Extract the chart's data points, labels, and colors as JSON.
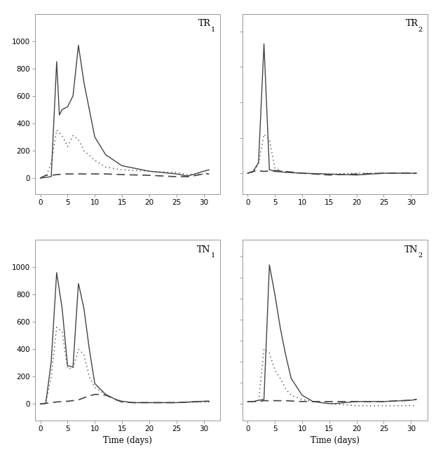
{
  "panels": [
    {
      "label": "TR",
      "label_sub": "1",
      "row": 0,
      "col": 0,
      "ylim": [
        -120,
        1200
      ],
      "yticks": [
        0,
        200,
        400,
        600,
        800,
        1000
      ],
      "solid": {
        "x": [
          0,
          1,
          2,
          3,
          3.5,
          4,
          5,
          6,
          7,
          8,
          10,
          12,
          15,
          20,
          25,
          27,
          28,
          30,
          31
        ],
        "y": [
          0,
          5,
          10,
          850,
          460,
          500,
          520,
          600,
          970,
          700,
          300,
          170,
          90,
          50,
          30,
          15,
          25,
          50,
          60
        ]
      },
      "dotted": {
        "x": [
          0,
          1,
          2,
          3,
          4,
          5,
          6,
          7,
          8,
          10,
          12,
          15,
          20,
          25,
          27,
          30,
          31
        ],
        "y": [
          0,
          5,
          110,
          350,
          310,
          230,
          310,
          280,
          200,
          130,
          80,
          60,
          50,
          40,
          25,
          30,
          40
        ]
      },
      "dashed": {
        "x": [
          0,
          1,
          2,
          3,
          5,
          7,
          10,
          12,
          15,
          20,
          25,
          27,
          28,
          30,
          31
        ],
        "y": [
          0,
          20,
          20,
          25,
          30,
          30,
          30,
          30,
          25,
          20,
          10,
          10,
          15,
          30,
          30
        ]
      },
      "xlabel": false
    },
    {
      "label": "TR",
      "label_sub": "2",
      "row": 0,
      "col": 1,
      "ylim": [
        -120,
        900
      ],
      "yticks": [
        0,
        200,
        400,
        600,
        800
      ],
      "solid": {
        "x": [
          0,
          1,
          2,
          3,
          4,
          5,
          7,
          10,
          15,
          20,
          25,
          30,
          31
        ],
        "y": [
          0,
          10,
          60,
          730,
          20,
          10,
          5,
          0,
          -5,
          -10,
          0,
          0,
          0
        ]
      },
      "dotted": {
        "x": [
          0,
          1,
          2,
          3,
          4,
          5,
          6,
          7,
          10,
          15,
          20,
          25,
          30,
          31
        ],
        "y": [
          0,
          5,
          50,
          220,
          190,
          30,
          15,
          5,
          0,
          -5,
          0,
          0,
          0,
          -5
        ]
      },
      "dashed": {
        "x": [
          0,
          1,
          2,
          3,
          5,
          7,
          10,
          15,
          20,
          25,
          30,
          31
        ],
        "y": [
          0,
          10,
          15,
          10,
          15,
          10,
          0,
          -10,
          -5,
          0,
          0,
          0
        ]
      },
      "xlabel": false
    },
    {
      "label": "TN",
      "label_sub": "1",
      "row": 1,
      "col": 0,
      "ylim": [
        -120,
        1200
      ],
      "yticks": [
        0,
        200,
        400,
        600,
        800,
        1000
      ],
      "solid": {
        "x": [
          0,
          1,
          2,
          3,
          4,
          5,
          6,
          7,
          8,
          9,
          10,
          12,
          14,
          15,
          17,
          20,
          25,
          30,
          31
        ],
        "y": [
          0,
          5,
          310,
          960,
          700,
          280,
          270,
          880,
          700,
          400,
          150,
          70,
          30,
          20,
          10,
          10,
          10,
          20,
          20
        ]
      },
      "dotted": {
        "x": [
          0,
          1,
          2,
          3,
          4,
          5,
          6,
          7,
          8,
          9,
          10,
          12,
          14,
          15,
          17,
          20,
          25,
          30,
          31
        ],
        "y": [
          0,
          5,
          200,
          560,
          530,
          260,
          260,
          400,
          360,
          200,
          120,
          70,
          30,
          20,
          10,
          10,
          10,
          15,
          15
        ]
      },
      "dashed": {
        "x": [
          0,
          1,
          2,
          3,
          5,
          7,
          9,
          10,
          11,
          12,
          14,
          15,
          17,
          20,
          25,
          30,
          31
        ],
        "y": [
          0,
          5,
          10,
          15,
          20,
          30,
          60,
          70,
          70,
          65,
          30,
          15,
          10,
          10,
          10,
          20,
          20
        ]
      },
      "xlabel": true
    },
    {
      "label": "TN",
      "label_sub": "2",
      "row": 1,
      "col": 1,
      "ylim": [
        -40,
        390
      ],
      "yticks": [
        0,
        50,
        100,
        150,
        200,
        250,
        300,
        350
      ],
      "solid": {
        "x": [
          0,
          1,
          2,
          3,
          4,
          5,
          6,
          7,
          8,
          10,
          12,
          15,
          16,
          20,
          25,
          30,
          31
        ],
        "y": [
          5,
          5,
          8,
          10,
          330,
          260,
          180,
          115,
          60,
          20,
          5,
          0,
          0,
          5,
          5,
          8,
          10
        ]
      },
      "dotted": {
        "x": [
          0,
          1,
          2,
          3,
          4,
          5,
          6,
          7,
          8,
          10,
          12,
          15,
          20,
          25,
          30,
          31
        ],
        "y": [
          5,
          5,
          5,
          130,
          120,
          80,
          60,
          35,
          20,
          10,
          5,
          0,
          -5,
          -5,
          -5,
          -5
        ]
      },
      "dashed": {
        "x": [
          0,
          1,
          2,
          3,
          5,
          7,
          10,
          15,
          20,
          25,
          30,
          31
        ],
        "y": [
          5,
          5,
          5,
          7,
          7,
          7,
          5,
          5,
          5,
          5,
          8,
          10
        ]
      },
      "xlabel": true
    }
  ],
  "xlim": [
    -1,
    33
  ],
  "xticks": [
    0,
    5,
    10,
    15,
    20,
    25,
    30
  ],
  "line_color": "#444444",
  "fig_bg": "#ffffff"
}
